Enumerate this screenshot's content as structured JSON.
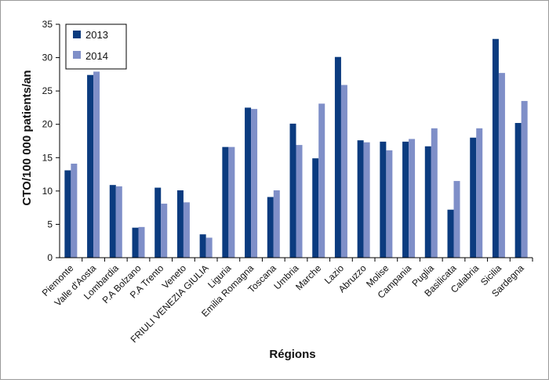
{
  "chart_data": {
    "type": "bar",
    "title": "",
    "xlabel": "Régions",
    "ylabel": "CTO/100 000 patients/an",
    "ylim": [
      0,
      35
    ],
    "yticks": [
      0,
      5,
      10,
      15,
      20,
      25,
      30,
      35
    ],
    "grid": false,
    "legend_position": "top-left",
    "categories": [
      "Piemonte",
      "Valle d'Aosta",
      "Lombardia",
      "P.A Bolzano",
      "P.A Trento",
      "Veneto",
      "FRIULI VENEZIA GIULIA",
      "Liguria",
      "Emilia Romagna",
      "Toscana",
      "Umbria",
      "Marche",
      "Lazio",
      "Abruzzo",
      "Molise",
      "Campania",
      "Puglia",
      "Basilicata",
      "Calabria",
      "Sicilia",
      "Sardegna"
    ],
    "series": [
      {
        "name": "2013",
        "color": "#0b3b7f",
        "values": [
          13.1,
          27.4,
          10.9,
          4.5,
          10.5,
          10.1,
          3.5,
          16.6,
          22.5,
          9.1,
          20.1,
          14.9,
          30.1,
          17.6,
          17.4,
          17.4,
          16.7,
          7.2,
          18.0,
          32.8,
          20.2
        ]
      },
      {
        "name": "2014",
        "color": "#7f8fc8",
        "values": [
          14.1,
          27.9,
          10.7,
          4.6,
          8.1,
          8.3,
          3.0,
          16.6,
          22.3,
          10.1,
          16.9,
          23.1,
          25.9,
          17.3,
          16.1,
          17.8,
          19.4,
          11.5,
          19.4,
          27.7,
          23.5
        ]
      }
    ]
  }
}
